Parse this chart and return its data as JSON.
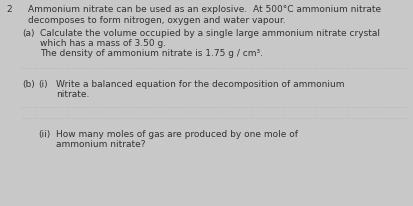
{
  "background_color": "#c8c8c8",
  "question_number": "2",
  "intro_line1": "Ammonium nitrate can be used as an explosive.  At 500°C ammonium nitrate",
  "intro_line2": "decomposes to form nitrogen, oxygen and water vapour.",
  "part_a_label": "(a)",
  "part_a_line1": "Calculate the volume occupied by a single large ammonium nitrate crystal",
  "part_a_line2": "which has a mass of 3.50 g.",
  "part_a_line3": "The density of ammonium nitrate is 1.75 g / cm³.",
  "part_b_label": "(b)",
  "part_bi_label": "(i)",
  "part_bi_line1": "Write a balanced equation for the decomposition of ammonium",
  "part_bi_line2": "nitrate.",
  "part_bii_label": "(ii)",
  "part_bii_line1": "How many moles of gas are produced by one mole of",
  "part_bii_line2": "ammonium nitrate?",
  "text_color": "#333333",
  "dotted_line_color": "#aaaaaa",
  "font_size": 6.5,
  "label_font_size": 6.5
}
